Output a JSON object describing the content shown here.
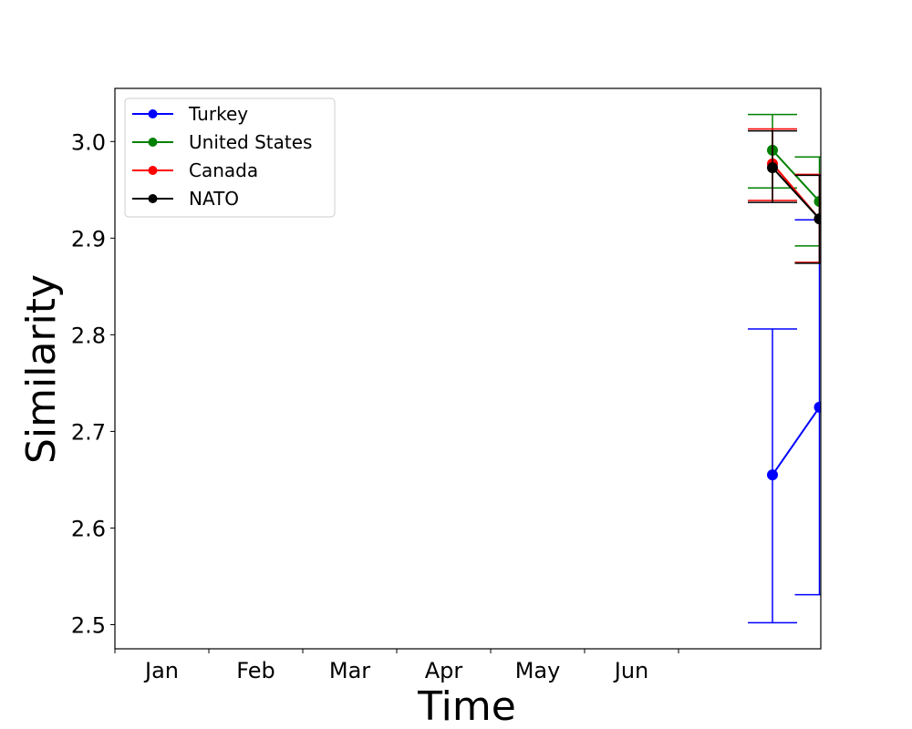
{
  "chart_data": {
    "type": "line",
    "title": "",
    "xlabel": "Time",
    "ylabel": "Similarity",
    "x_tick_labels": [
      "Jan",
      "Feb",
      "Mar",
      "Apr",
      "May",
      "Jun"
    ],
    "ylim": [
      2.475,
      3.055
    ],
    "y_ticks": [
      2.5,
      2.6,
      2.7,
      2.8,
      2.9,
      3.0
    ],
    "y_tick_labels": [
      "2.5",
      "2.6",
      "2.7",
      "2.8",
      "2.9",
      "3.0"
    ],
    "grid": false,
    "legend_position": "top-left",
    "x_positions": [
      7,
      7.5
    ],
    "series": [
      {
        "name": "Turkey",
        "color": "#0000ff",
        "values": [
          2.655,
          2.725
        ],
        "error_low": [
          2.502,
          2.531
        ],
        "error_high": [
          2.806,
          2.919
        ]
      },
      {
        "name": "United States",
        "color": "#008000",
        "values": [
          2.991,
          2.938
        ],
        "error_low": [
          2.952,
          2.892
        ],
        "error_high": [
          3.028,
          2.984
        ]
      },
      {
        "name": "Canada",
        "color": "#ff0000",
        "values": [
          2.977,
          2.92
        ],
        "error_low": [
          2.939,
          2.875
        ],
        "error_high": [
          3.013,
          2.966
        ]
      },
      {
        "name": "NATO",
        "color": "#000000",
        "values": [
          2.973,
          2.92
        ],
        "error_low": [
          2.937,
          2.874
        ],
        "error_high": [
          3.011,
          2.965
        ]
      }
    ]
  }
}
